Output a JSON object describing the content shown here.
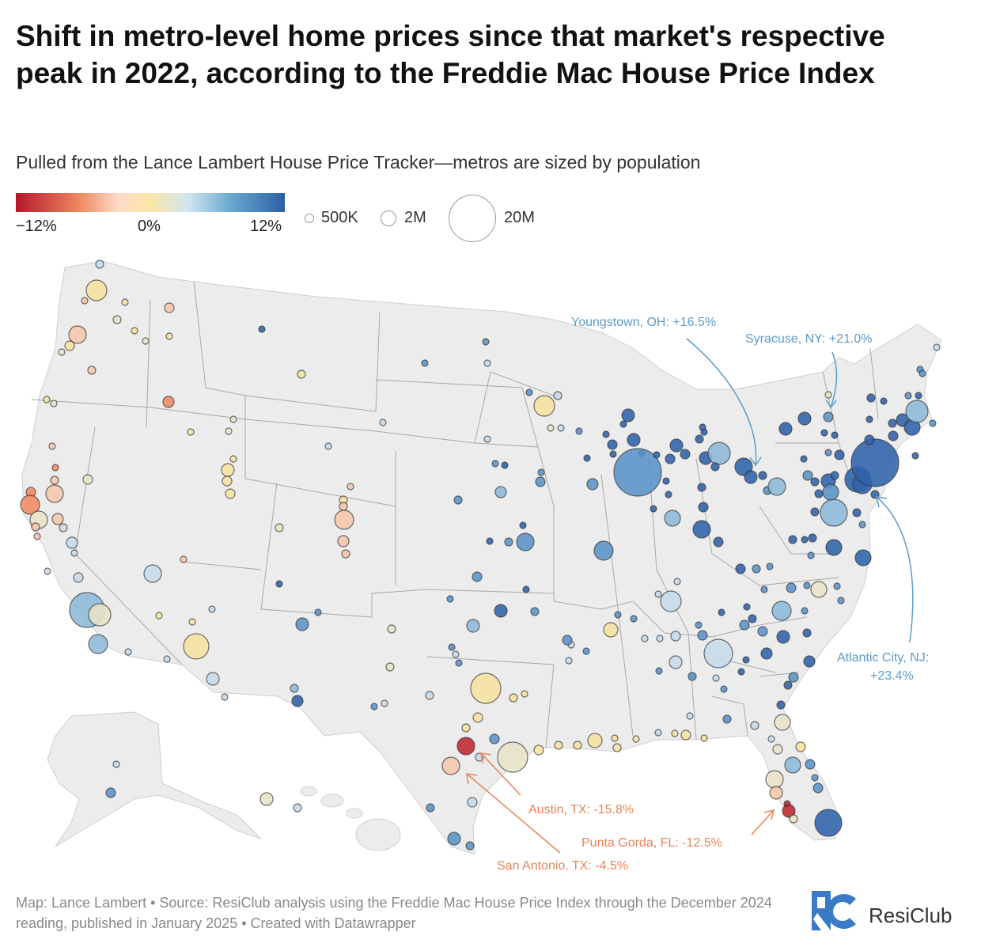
{
  "title": "Shift in metro-level home prices since that market's respective peak in 2022, according to the Freddie Mac House Price Index",
  "subtitle": "Pulled from the Lance Lambert House Price Tracker—metros are sized by population",
  "legend": {
    "color_min_label": "−12%",
    "color_mid_label": "0%",
    "color_max_label": "12%",
    "size_labels": [
      "500K",
      "2M",
      "20M"
    ],
    "color_stops": [
      "#b2182b",
      "#ef8a62",
      "#fddbc7",
      "#fbe7a6",
      "#d1e5f0",
      "#67a9cf",
      "#2c5fa6"
    ]
  },
  "annotations": {
    "youngstown": "Youngstown, OH: +16.5%",
    "syracuse": "Syracuse, NY: +21.0%",
    "atlantic_city_line1": "Atlantic City, NJ:",
    "atlantic_city_line2": "+23.4%",
    "austin": "Austin, TX: -15.8%",
    "punta_gorda": "Punta Gorda, FL: -12.5%",
    "san_antonio": "San Antonio, TX: -4.5%"
  },
  "colors": {
    "annotation_blue": "#5b9bc8",
    "annotation_orange": "#e8845a",
    "land": "#ececec",
    "state_borders": "#a8a8a8"
  },
  "footer": "Map: Lance Lambert • Source: ResiClub analysis using the Freddie Mac House Price Index through the December 2024 reading, published in January 2025 • Created with Datawrapper",
  "logo": {
    "text": "ResiClub"
  }
}
